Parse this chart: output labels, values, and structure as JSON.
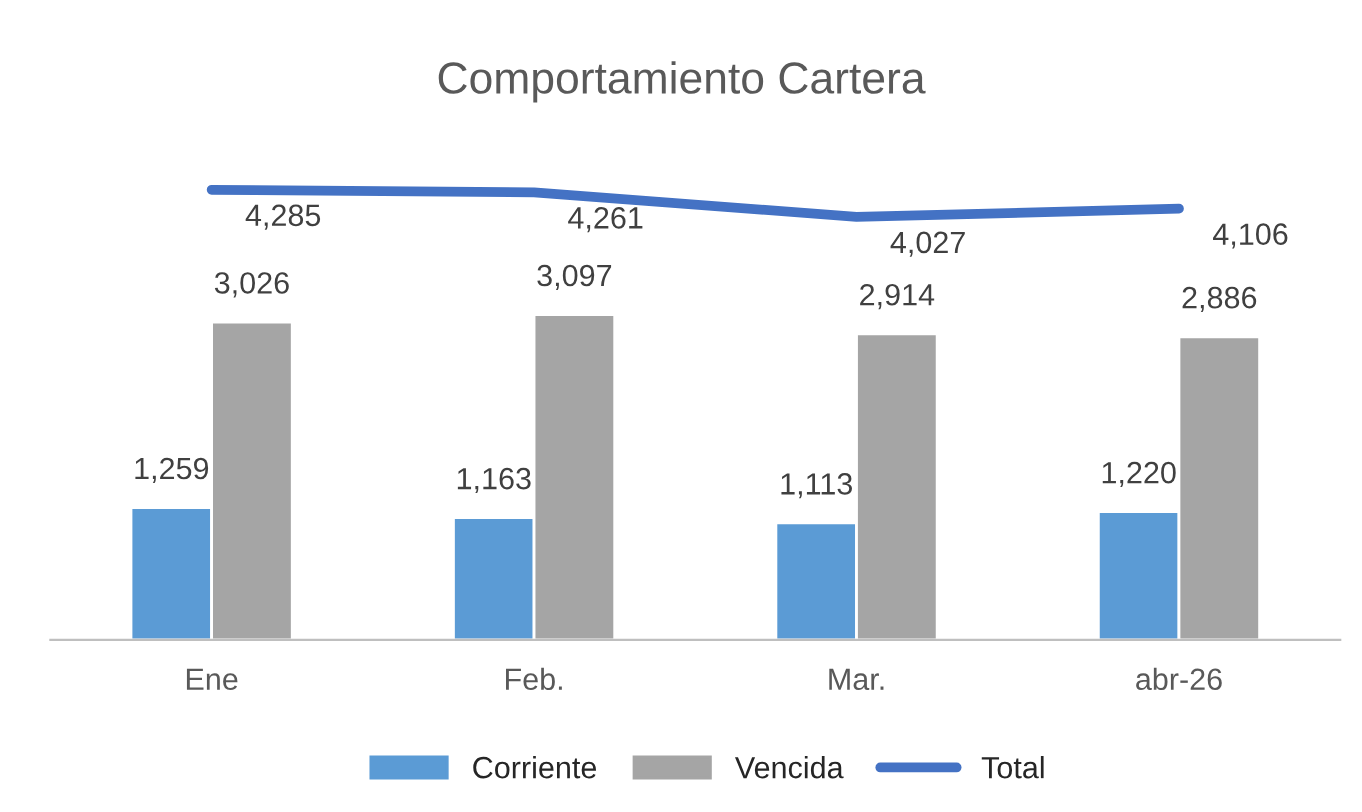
{
  "chart_data": {
    "type": "bar",
    "title": "Comportamiento Cartera",
    "categories": [
      "Ene",
      "Feb.",
      "Mar.",
      "abr-26"
    ],
    "series": [
      {
        "name": "Corriente",
        "color": "#5b9bd5",
        "values": [
          1259,
          1163,
          1113,
          1220
        ],
        "value_labels": [
          "1,259",
          "1,163",
          "1,113",
          "1,220"
        ]
      },
      {
        "name": "Vencida",
        "color": "#a5a5a5",
        "values": [
          3026,
          3097,
          2914,
          2886
        ],
        "value_labels": [
          "3,026",
          "3,097",
          "2,914",
          "2,886"
        ]
      },
      {
        "name": "Total",
        "type": "line",
        "color": "#4472c4",
        "values": [
          4285,
          4261,
          4027,
          4106
        ],
        "value_labels": [
          "4,285",
          "4,261",
          "4,027",
          "4,106"
        ]
      }
    ],
    "legend": "bottom",
    "marker": "none",
    "line_style": "solid"
  }
}
